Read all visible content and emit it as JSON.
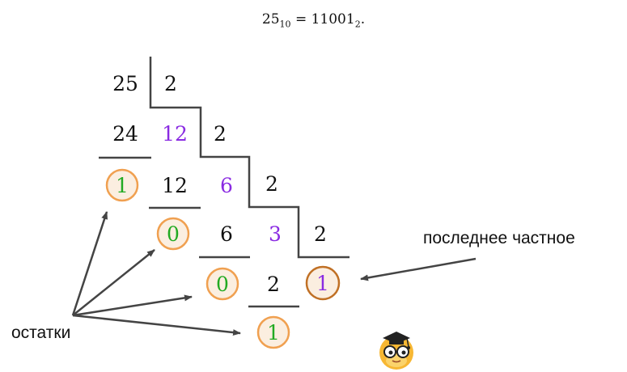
{
  "formula": {
    "decimal": "25",
    "decimal_base": "10",
    "equals": "=",
    "binary": "11001",
    "binary_base": "2",
    "end": "."
  },
  "division": {
    "dividend": "25",
    "divisors": [
      "2",
      "2",
      "2",
      "2"
    ],
    "products": [
      "24",
      "12",
      "6",
      "2"
    ],
    "quotients": [
      "12",
      "6",
      "3"
    ],
    "remainders": [
      "1",
      "0",
      "0",
      "1"
    ],
    "last_quotient": "1"
  },
  "labels": {
    "remainders": "остатки",
    "last_quotient": "последнее частное"
  },
  "colors": {
    "text": "#111111",
    "quotient": "#8a2be2",
    "remainder": "#22aa22",
    "circle_stroke": "#f0a050",
    "circle_fill": "#fbeee0",
    "last_circle_stroke": "#c07025",
    "lines": "#444444",
    "arrows": "#444444"
  },
  "icons": {
    "mascot": "owl-graduate-icon"
  }
}
